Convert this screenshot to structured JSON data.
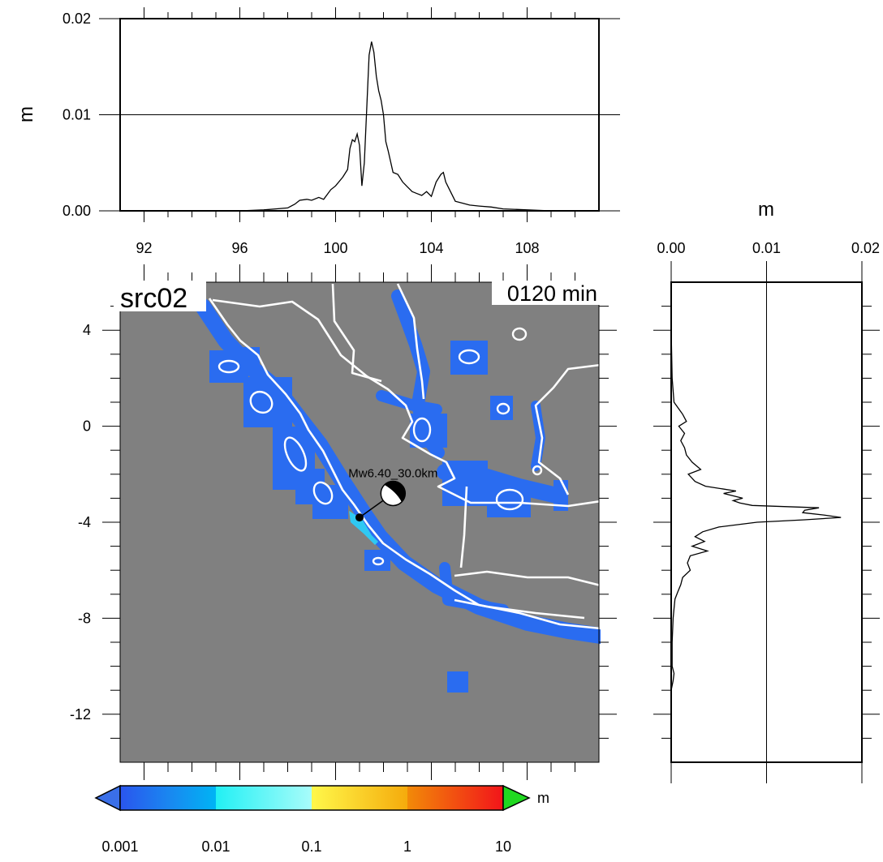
{
  "figure": {
    "panel_label": "src02",
    "time_label": "0120 min",
    "source_label": "Mw6.40_30.0km"
  },
  "chart_data": [
    {
      "type": "line",
      "id": "top-profile",
      "xlabel": "",
      "ylabel": "m",
      "xlim": [
        91,
        111
      ],
      "ylim": [
        0,
        0.02
      ],
      "xticks": [
        92,
        96,
        100,
        104,
        108
      ],
      "xtick_labels": [
        "92",
        "96",
        "100",
        "104",
        "108"
      ],
      "yticks": [
        0,
        0.01,
        0.02
      ],
      "ytick_labels": [
        "0.00",
        "0.01",
        "0.02"
      ],
      "reference_line": 0.01,
      "x": [
        95.0,
        96.0,
        97.0,
        97.5,
        98.0,
        98.3,
        98.5,
        98.8,
        99.0,
        99.3,
        99.5,
        99.8,
        100.0,
        100.3,
        100.5,
        100.6,
        100.7,
        100.8,
        100.9,
        101.0,
        101.1,
        101.2,
        101.3,
        101.4,
        101.5,
        101.6,
        101.7,
        101.8,
        101.9,
        102.0,
        102.1,
        102.2,
        102.4,
        102.6,
        102.8,
        103.0,
        103.2,
        103.4,
        103.6,
        103.8,
        104.0,
        104.2,
        104.4,
        104.5,
        104.6,
        104.8,
        105.0,
        105.3,
        105.6,
        106.0,
        106.5,
        107.0,
        108.0,
        109.0,
        110.0,
        111.0
      ],
      "y": [
        0.0,
        0.0,
        0.0001,
        0.0002,
        0.0003,
        0.0007,
        0.0011,
        0.0012,
        0.0011,
        0.0014,
        0.0012,
        0.0022,
        0.0026,
        0.0035,
        0.0043,
        0.0065,
        0.0074,
        0.0072,
        0.008,
        0.0068,
        0.0026,
        0.005,
        0.0105,
        0.0162,
        0.0176,
        0.0165,
        0.014,
        0.0125,
        0.0115,
        0.01,
        0.0072,
        0.0062,
        0.004,
        0.0038,
        0.003,
        0.0025,
        0.002,
        0.0018,
        0.0016,
        0.002,
        0.0015,
        0.003,
        0.0038,
        0.004,
        0.003,
        0.002,
        0.001,
        0.0008,
        0.0006,
        0.0005,
        0.0004,
        0.0002,
        0.0001,
        0.0,
        0.0,
        0.0
      ]
    },
    {
      "type": "line",
      "id": "side-profile",
      "xlabel": "m",
      "ylabel": "",
      "xlim": [
        0,
        0.02
      ],
      "ylim": [
        -14,
        6
      ],
      "xticks": [
        0,
        0.01,
        0.02
      ],
      "xtick_labels": [
        "0.00",
        "0.01",
        "0.02"
      ],
      "reference_line": 0.01,
      "y": [
        6,
        4,
        2,
        1.0,
        0.5,
        0.2,
        0.0,
        -0.3,
        -0.6,
        -0.9,
        -1.2,
        -1.5,
        -1.8,
        -2.0,
        -2.3,
        -2.5,
        -2.7,
        -2.8,
        -3.0,
        -3.1,
        -3.2,
        -3.3,
        -3.4,
        -3.5,
        -3.6,
        -3.7,
        -3.8,
        -3.9,
        -4.0,
        -4.2,
        -4.4,
        -4.6,
        -4.8,
        -5.0,
        -5.2,
        -5.4,
        -5.7,
        -6.0,
        -6.3,
        -6.6,
        -6.9,
        -7.2,
        -7.6,
        -8.0,
        -9.0,
        -10.0,
        -10.3,
        -10.6,
        -11.0,
        -12.0,
        -14.0
      ],
      "x": [
        0.0,
        0.0,
        0.0001,
        0.0003,
        0.0012,
        0.0016,
        0.0008,
        0.0014,
        0.001,
        0.0014,
        0.0016,
        0.0022,
        0.0031,
        0.0018,
        0.0025,
        0.0036,
        0.0068,
        0.0055,
        0.0075,
        0.0065,
        0.0072,
        0.0085,
        0.0155,
        0.014,
        0.0138,
        0.016,
        0.0178,
        0.014,
        0.009,
        0.005,
        0.0033,
        0.0025,
        0.0035,
        0.0022,
        0.0038,
        0.002,
        0.0017,
        0.002,
        0.0012,
        0.001,
        0.0007,
        0.0004,
        0.0003,
        0.0002,
        0.0001,
        0.0001,
        0.0003,
        0.0002,
        0.0,
        0.0,
        0.0
      ]
    },
    {
      "type": "heatmap",
      "id": "map",
      "xlim": [
        91,
        111
      ],
      "ylim": [
        -14,
        6
      ],
      "yticks": [
        4,
        0,
        -4,
        -8,
        -12
      ],
      "ytick_labels": [
        "4",
        "0",
        "-4",
        "-8",
        "-12"
      ],
      "background_color": "#808080",
      "coast_color": "#ffffff",
      "source": {
        "lon": 101.0,
        "lat": -3.8,
        "beachball_lon": 102.4,
        "beachball_lat": -2.8
      },
      "colorbar": {
        "unit": "m",
        "labels": [
          "0.001",
          "0.01",
          "0.1",
          "1",
          "10"
        ],
        "under_color": "#3a6fe8",
        "over_color": "#20d820"
      }
    }
  ]
}
